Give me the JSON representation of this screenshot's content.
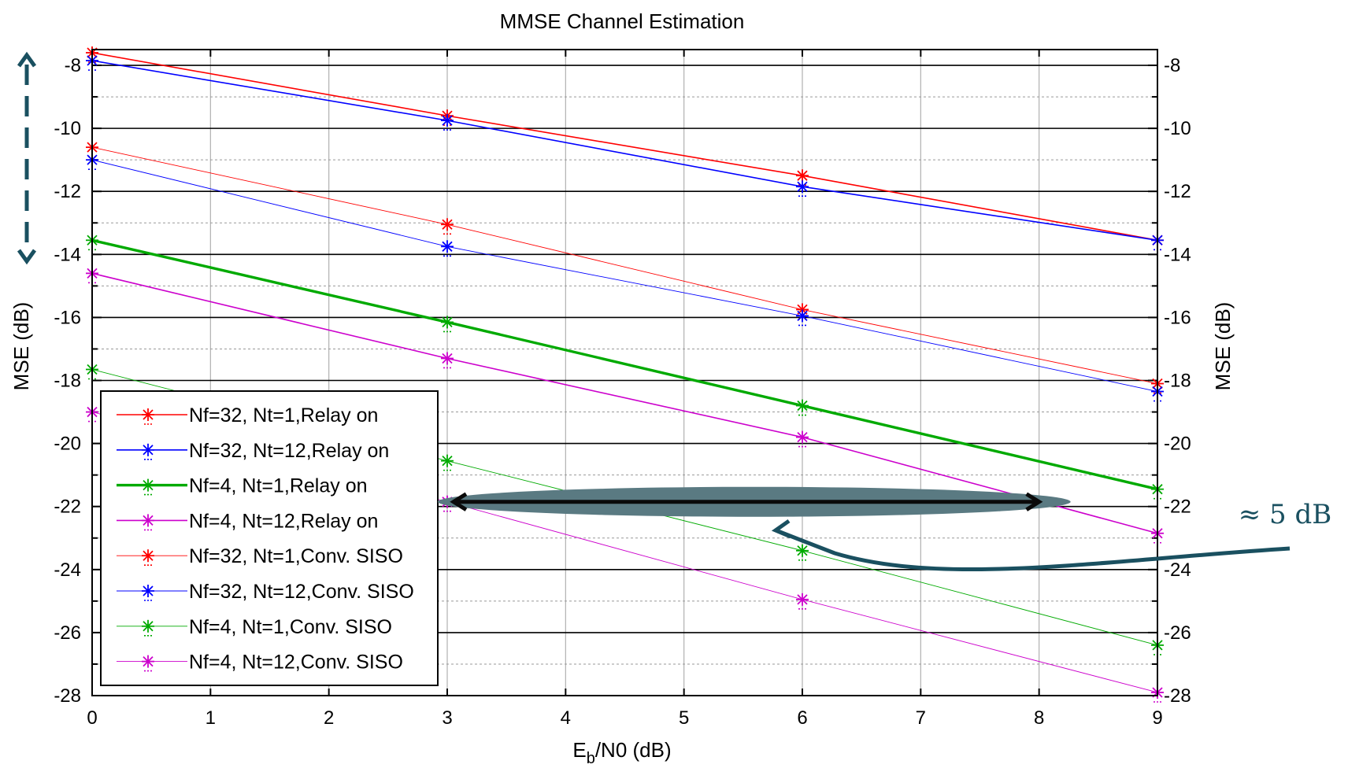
{
  "chart_data": {
    "type": "line",
    "title": "MMSE Channel Estimation",
    "xlabel_main": "E",
    "xlabel_sub": "b",
    "xlabel_rest": "/N0 (dB)",
    "ylabel": "MSE  (dB)",
    "ylabel_right": "MSE  (dB)",
    "xlim": [
      0,
      9
    ],
    "ylim": [
      -28,
      -7.5
    ],
    "x_ticks": [
      "0",
      "1",
      "2",
      "3",
      "4",
      "5",
      "6",
      "7",
      "8",
      "9"
    ],
    "y_ticks": [
      "-8",
      "-10",
      "-12",
      "-14",
      "-16",
      "-18",
      "-20",
      "-22",
      "-24",
      "-26",
      "-28"
    ],
    "y_ticks_right": [
      "-8",
      "-10",
      "-12",
      "-14",
      "-16",
      "-18",
      "-20",
      "-22",
      "-24",
      "-26",
      "-28"
    ],
    "grid": true,
    "legend_position": "bottom-left",
    "x": [
      0,
      3,
      6,
      9
    ],
    "series": [
      {
        "name": "Nf=32, Nt=1,Relay on",
        "color": "#ff0000",
        "style": "relay",
        "values": [
          -7.6,
          -9.6,
          -11.5,
          -13.55
        ]
      },
      {
        "name": "Nf=32, Nt=12,Relay on",
        "color": "#0000ff",
        "style": "relay",
        "values": [
          -7.85,
          -9.75,
          -11.85,
          -13.55
        ]
      },
      {
        "name": "Nf=4, Nt=1,Relay on",
        "color": "#00aa00",
        "style": "relay-thick",
        "values": [
          -13.55,
          -16.15,
          -18.8,
          -21.45
        ]
      },
      {
        "name": "Nf=4, Nt=12,Relay on",
        "color": "#cc00cc",
        "style": "relay",
        "values": [
          -14.6,
          -17.3,
          -19.8,
          -22.85
        ]
      },
      {
        "name": "Nf=32, Nt=1,Conv. SISO",
        "color": "#ff0000",
        "style": "conv",
        "values": [
          -10.6,
          -13.05,
          -15.75,
          -18.1
        ]
      },
      {
        "name": "Nf=32, Nt=12,Conv. SISO",
        "color": "#0000ff",
        "style": "conv",
        "values": [
          -11.0,
          -13.75,
          -15.95,
          -18.35
        ]
      },
      {
        "name": "Nf=4, Nt=1,Conv. SISO",
        "color": "#00aa00",
        "style": "conv",
        "values": [
          -17.65,
          -20.55,
          -23.4,
          -26.4
        ]
      },
      {
        "name": "Nf=4, Nt=12,Conv. SISO",
        "color": "#cc00cc",
        "style": "conv",
        "values": [
          -19.0,
          -21.85,
          -24.95,
          -27.9
        ]
      }
    ],
    "annotations": {
      "gap_label": "≈ 5 dB",
      "gap_arrow_x_range": [
        3,
        8
      ],
      "gap_arrow_y": -21.85,
      "annotation_color": "#1a5060",
      "ellipse_color": "#5a7a82"
    }
  }
}
